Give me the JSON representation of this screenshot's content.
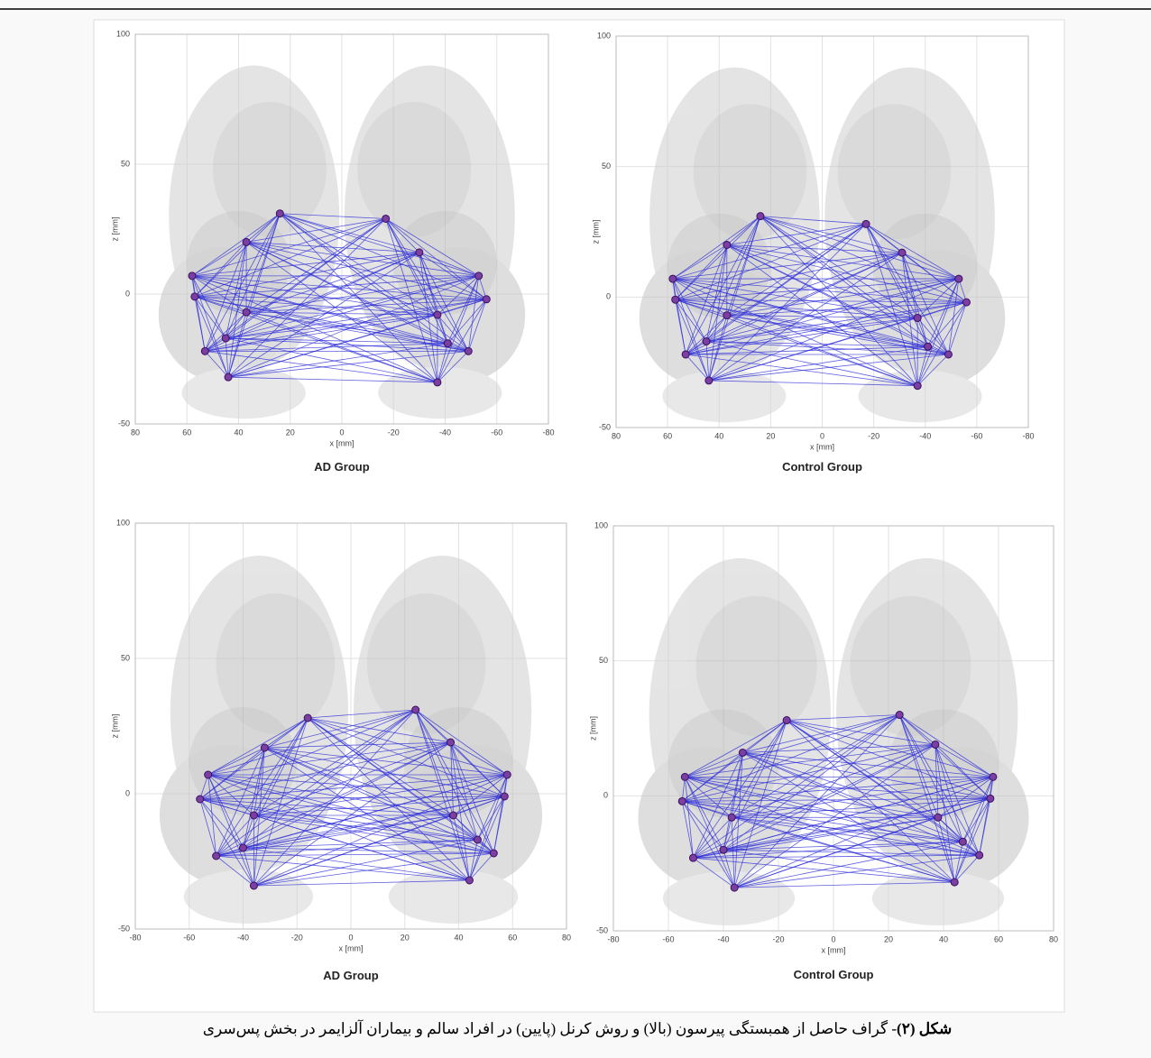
{
  "panels": [
    {
      "title": "AD Group",
      "xlabel": "x [mm]",
      "ylabel": "z [mm]",
      "xlim": [
        80,
        -80
      ],
      "ylim": [
        -50,
        100
      ],
      "xticks": [
        80,
        60,
        40,
        20,
        0,
        -20,
        -40,
        -60,
        -80
      ],
      "yticks": [
        -50,
        0,
        50,
        100
      ],
      "nodes": {
        "x": [
          24,
          -17,
          37,
          -30,
          58,
          -53,
          57,
          -56,
          37,
          -37,
          53,
          -49,
          -41,
          44,
          -37,
          45
        ],
        "z": [
          31,
          29,
          20,
          16,
          7,
          7,
          -1,
          -2,
          -7,
          -8,
          -22,
          -22,
          -19,
          -32,
          -34,
          -17
        ]
      }
    },
    {
      "title": "Control Group",
      "xlabel": "x [mm]",
      "ylabel": "z [mm]",
      "xlim": [
        80,
        -80
      ],
      "ylim": [
        -50,
        100
      ],
      "xticks": [
        80,
        60,
        40,
        20,
        0,
        -20,
        -40,
        -60,
        -80
      ],
      "yticks": [
        -50,
        0,
        50,
        100
      ],
      "nodes": {
        "x": [
          24,
          -17,
          37,
          -31,
          58,
          -53,
          57,
          -56,
          37,
          -37,
          53,
          -49,
          -41,
          44,
          -37,
          45
        ],
        "z": [
          31,
          28,
          20,
          17,
          7,
          7,
          -1,
          -2,
          -7,
          -8,
          -22,
          -22,
          -19,
          -32,
          -34,
          -17
        ]
      }
    },
    {
      "title": "AD Group",
      "xlabel": "x [mm]",
      "ylabel": "z [mm]",
      "xlim": [
        -80,
        80
      ],
      "ylim": [
        -50,
        100
      ],
      "xticks": [
        -80,
        -60,
        -40,
        -20,
        0,
        20,
        40,
        60,
        80
      ],
      "yticks": [
        -50,
        0,
        50,
        100
      ],
      "nodes": {
        "x": [
          -16,
          24,
          -32,
          37,
          -53,
          58,
          -56,
          57,
          -36,
          38,
          -40,
          -50,
          53,
          47,
          -36,
          44
        ],
        "z": [
          28,
          31,
          17,
          19,
          7,
          7,
          -2,
          -1,
          -8,
          -8,
          -20,
          -23,
          -22,
          -17,
          -34,
          -32
        ]
      }
    },
    {
      "title": "Control Group",
      "xlabel": "x [mm]",
      "ylabel": "z [mm]",
      "xlim": [
        -80,
        80
      ],
      "ylim": [
        -50,
        100
      ],
      "xticks": [
        -80,
        -60,
        -40,
        -20,
        0,
        20,
        40,
        60,
        80
      ],
      "yticks": [
        -50,
        0,
        50,
        100
      ],
      "nodes": {
        "x": [
          -17,
          24,
          -33,
          37,
          -54,
          58,
          -55,
          57,
          -37,
          38,
          -40,
          -51,
          53,
          47,
          -36,
          44
        ],
        "z": [
          28,
          30,
          16,
          19,
          7,
          7,
          -2,
          -1,
          -8,
          -8,
          -20,
          -23,
          -22,
          -17,
          -34,
          -32
        ]
      }
    }
  ],
  "caption": {
    "label": "شکل (۲)",
    "text": "- گراف حاصل از همبستگی پیرسون (بالا) و روش کرنل (پایین) در افراد سالم و بیماران آلزایمر در بخش پس‌سری"
  }
}
